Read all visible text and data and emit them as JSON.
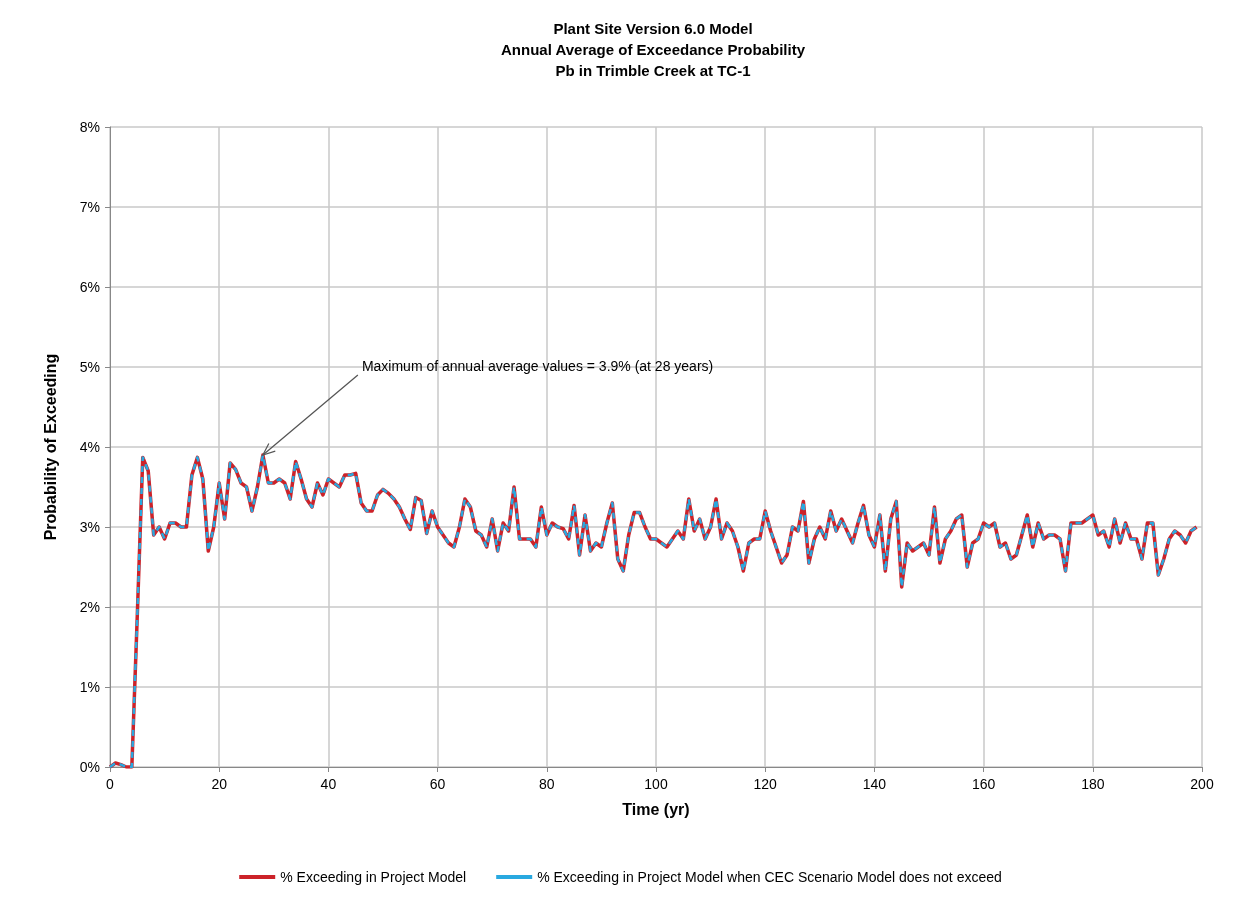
{
  "chart_data": {
    "type": "line",
    "title": "Plant Site Version 6.0 Model\nAnnual Average of Exceedance Probability\nPb in Trimble Creek at TC-1",
    "xlabel": "Time (yr)",
    "ylabel": "Probability of Exceeding",
    "annotations": [
      {
        "text": "Maximum of annual average values = 3.9% (at 28 years)",
        "x": 28,
        "y": 3.9
      }
    ],
    "x": [
      0,
      1,
      2,
      3,
      4,
      5,
      6,
      7,
      8,
      9,
      10,
      11,
      12,
      13,
      14,
      15,
      16,
      17,
      18,
      19,
      20,
      21,
      22,
      23,
      24,
      25,
      26,
      27,
      28,
      29,
      30,
      31,
      32,
      33,
      34,
      35,
      36,
      37,
      38,
      39,
      40,
      41,
      42,
      43,
      44,
      45,
      46,
      47,
      48,
      49,
      50,
      51,
      52,
      53,
      54,
      55,
      56,
      57,
      58,
      59,
      60,
      61,
      62,
      63,
      64,
      65,
      66,
      67,
      68,
      69,
      70,
      71,
      72,
      73,
      74,
      75,
      76,
      77,
      78,
      79,
      80,
      81,
      82,
      83,
      84,
      85,
      86,
      87,
      88,
      89,
      90,
      91,
      92,
      93,
      94,
      95,
      96,
      97,
      98,
      99,
      100,
      101,
      102,
      103,
      104,
      105,
      106,
      107,
      108,
      109,
      110,
      111,
      112,
      113,
      114,
      115,
      116,
      117,
      118,
      119,
      120,
      121,
      122,
      123,
      124,
      125,
      126,
      127,
      128,
      129,
      130,
      131,
      132,
      133,
      134,
      135,
      136,
      137,
      138,
      139,
      140,
      141,
      142,
      143,
      144,
      145,
      146,
      147,
      148,
      149,
      150,
      151,
      152,
      153,
      154,
      155,
      156,
      157,
      158,
      159,
      160,
      161,
      162,
      163,
      164,
      165,
      166,
      167,
      168,
      169,
      170,
      171,
      172,
      173,
      174,
      175,
      176,
      177,
      178,
      179,
      180,
      181,
      182,
      183,
      184,
      185,
      186,
      187,
      188,
      189,
      190,
      191,
      192,
      193,
      194,
      195,
      196,
      197,
      198,
      199
    ],
    "series": [
      {
        "name": "% Exceeding in Project Model",
        "color": "#cc2229",
        "line_style": "solid",
        "values": [
          0,
          0.05,
          0.03,
          0,
          0,
          1.9,
          3.87,
          3.7,
          2.9,
          3.0,
          2.85,
          3.05,
          3.05,
          3.0,
          3.0,
          3.65,
          3.87,
          3.6,
          2.7,
          3.0,
          3.55,
          3.1,
          3.8,
          3.72,
          3.55,
          3.5,
          3.2,
          3.5,
          3.9,
          3.55,
          3.55,
          3.6,
          3.55,
          3.35,
          3.82,
          3.6,
          3.35,
          3.25,
          3.55,
          3.4,
          3.6,
          3.55,
          3.5,
          3.65,
          3.65,
          3.67,
          3.3,
          3.2,
          3.2,
          3.4,
          3.47,
          3.42,
          3.35,
          3.25,
          3.1,
          2.97,
          3.37,
          3.33,
          2.92,
          3.2,
          3.0,
          2.9,
          2.8,
          2.75,
          3.0,
          3.35,
          3.25,
          2.95,
          2.9,
          2.75,
          3.1,
          2.7,
          3.05,
          2.95,
          3.5,
          2.85,
          2.85,
          2.85,
          2.75,
          3.25,
          2.9,
          3.05,
          3.0,
          2.98,
          2.85,
          3.27,
          2.65,
          3.15,
          2.7,
          2.8,
          2.75,
          3.05,
          3.3,
          2.6,
          2.45,
          2.9,
          3.18,
          3.18,
          3.0,
          2.85,
          2.85,
          2.8,
          2.75,
          2.85,
          2.95,
          2.85,
          3.35,
          2.95,
          3.1,
          2.85,
          3.0,
          3.35,
          2.85,
          3.05,
          2.95,
          2.75,
          2.45,
          2.8,
          2.85,
          2.85,
          3.2,
          2.95,
          2.75,
          2.55,
          2.65,
          3.0,
          2.95,
          3.32,
          2.55,
          2.85,
          3.0,
          2.85,
          3.2,
          2.95,
          3.1,
          2.95,
          2.8,
          3.05,
          3.27,
          2.9,
          2.75,
          3.15,
          2.45,
          3.1,
          3.32,
          2.25,
          2.8,
          2.7,
          2.75,
          2.8,
          2.65,
          3.25,
          2.55,
          2.85,
          2.95,
          3.1,
          3.15,
          2.5,
          2.8,
          2.85,
          3.05,
          3.0,
          3.05,
          2.75,
          2.8,
          2.6,
          2.65,
          2.9,
          3.15,
          2.75,
          3.05,
          2.85,
          2.9,
          2.9,
          2.85,
          2.45,
          3.05,
          3.05,
          3.05,
          3.1,
          3.15,
          2.9,
          2.95,
          2.75,
          3.1,
          2.8,
          3.05,
          2.85,
          2.85,
          2.6,
          3.05,
          3.05,
          2.4,
          2.6,
          2.85,
          2.95,
          2.9,
          2.8,
          2.95,
          3.0
        ]
      },
      {
        "name": "% Exceeding in Project Model when CEC Scenario Model does not exceed",
        "color": "#29a9e0",
        "line_style": "dashed",
        "values": [
          0,
          0.05,
          0.03,
          0,
          0,
          1.9,
          3.87,
          3.7,
          2.9,
          3.0,
          2.85,
          3.05,
          3.05,
          3.0,
          3.0,
          3.65,
          3.87,
          3.6,
          2.7,
          3.0,
          3.55,
          3.1,
          3.8,
          3.72,
          3.55,
          3.5,
          3.2,
          3.5,
          3.9,
          3.55,
          3.55,
          3.6,
          3.55,
          3.35,
          3.82,
          3.6,
          3.35,
          3.25,
          3.55,
          3.4,
          3.6,
          3.55,
          3.5,
          3.65,
          3.65,
          3.67,
          3.3,
          3.2,
          3.2,
          3.4,
          3.47,
          3.42,
          3.35,
          3.25,
          3.1,
          2.97,
          3.37,
          3.33,
          2.92,
          3.2,
          3.0,
          2.9,
          2.8,
          2.75,
          3.0,
          3.35,
          3.25,
          2.95,
          2.9,
          2.75,
          3.1,
          2.7,
          3.05,
          2.95,
          3.5,
          2.85,
          2.85,
          2.85,
          2.75,
          3.25,
          2.9,
          3.05,
          3.0,
          2.98,
          2.85,
          3.27,
          2.65,
          3.15,
          2.7,
          2.8,
          2.75,
          3.05,
          3.3,
          2.6,
          2.45,
          2.9,
          3.18,
          3.18,
          3.0,
          2.85,
          2.85,
          2.8,
          2.75,
          2.85,
          2.95,
          2.85,
          3.35,
          2.95,
          3.1,
          2.85,
          3.0,
          3.35,
          2.85,
          3.05,
          2.95,
          2.75,
          2.45,
          2.8,
          2.85,
          2.85,
          3.2,
          2.95,
          2.75,
          2.55,
          2.65,
          3.0,
          2.95,
          3.32,
          2.55,
          2.85,
          3.0,
          2.85,
          3.2,
          2.95,
          3.1,
          2.95,
          2.8,
          3.05,
          3.27,
          2.9,
          2.75,
          3.15,
          2.45,
          3.1,
          3.32,
          2.25,
          2.8,
          2.7,
          2.75,
          2.8,
          2.65,
          3.25,
          2.55,
          2.85,
          2.95,
          3.1,
          3.15,
          2.5,
          2.8,
          2.85,
          3.05,
          3.0,
          3.05,
          2.75,
          2.8,
          2.6,
          2.65,
          2.9,
          3.15,
          2.75,
          3.05,
          2.85,
          2.9,
          2.9,
          2.85,
          2.45,
          3.05,
          3.05,
          3.05,
          3.1,
          3.15,
          2.9,
          2.95,
          2.75,
          3.1,
          2.8,
          3.05,
          2.85,
          2.85,
          2.6,
          3.05,
          3.05,
          2.4,
          2.6,
          2.85,
          2.95,
          2.9,
          2.8,
          2.95,
          3.0
        ]
      }
    ],
    "xlim": [
      0,
      200
    ],
    "xticks": [
      0,
      20,
      40,
      60,
      80,
      100,
      120,
      140,
      160,
      180,
      200
    ],
    "ylim": [
      0,
      8
    ],
    "yticks": [
      {
        "value": 0,
        "label": "0%"
      },
      {
        "value": 1,
        "label": "1%"
      },
      {
        "value": 2,
        "label": "2%"
      },
      {
        "value": 3,
        "label": "3%"
      },
      {
        "value": 4,
        "label": "4%"
      },
      {
        "value": 5,
        "label": "5%"
      },
      {
        "value": 6,
        "label": "6%"
      },
      {
        "value": 7,
        "label": "7%"
      },
      {
        "value": 8,
        "label": "8%"
      }
    ],
    "grid": true,
    "legend": "bottom",
    "marker": "none"
  }
}
